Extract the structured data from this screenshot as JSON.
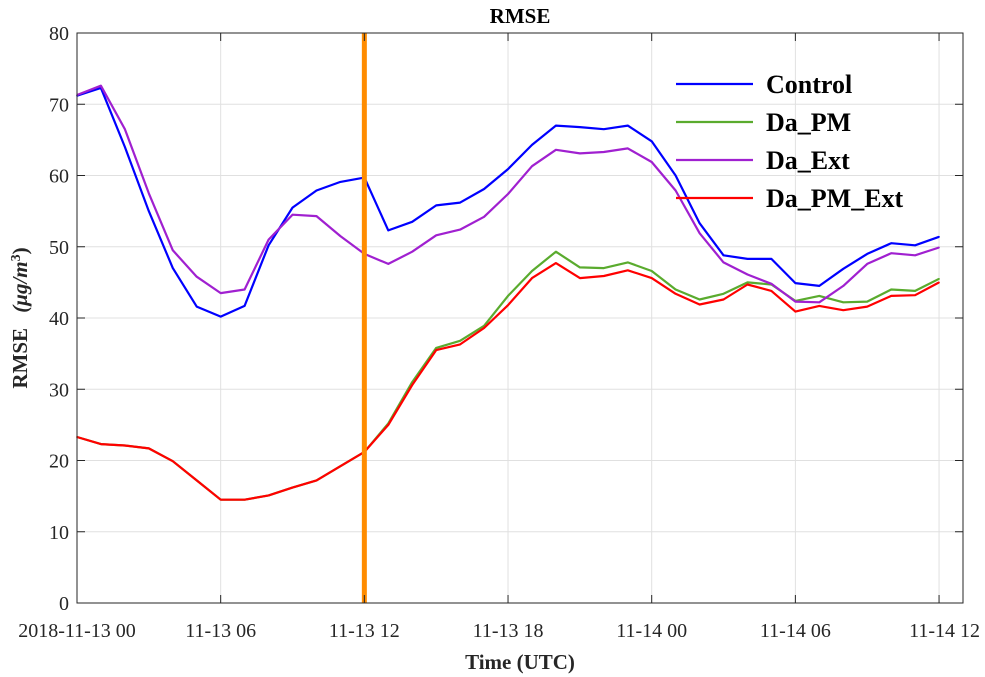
{
  "chart_data": {
    "type": "line",
    "title": "RMSE",
    "xlabel": "Time (UTC)",
    "ylabel": "RMSE",
    "ylabel_unit": "(μg/m3)",
    "ylim": [
      0,
      80
    ],
    "xlim": [
      0,
      37
    ],
    "yticks": [
      0,
      10,
      20,
      30,
      40,
      50,
      60,
      70,
      80
    ],
    "xticks": [
      {
        "x": 0,
        "label": "2018-11-13 00"
      },
      {
        "x": 6,
        "label": "11-13 06"
      },
      {
        "x": 12,
        "label": "11-13 12"
      },
      {
        "x": 18,
        "label": "11-13 18"
      },
      {
        "x": 24,
        "label": "11-14 00"
      },
      {
        "x": 30,
        "label": "11-14 06"
      },
      {
        "x": 36,
        "label": "11-14 12"
      }
    ],
    "x": [
      0,
      1,
      2,
      3,
      4,
      5,
      6,
      7,
      8,
      9,
      10,
      11,
      12,
      13,
      14,
      15,
      16,
      17,
      18,
      19,
      20,
      21,
      22,
      23,
      24,
      25,
      26,
      27,
      28,
      29,
      30,
      31,
      32,
      33,
      34,
      35,
      36
    ],
    "series": [
      {
        "name": "Control",
        "color": "#0000ff",
        "values": [
          71.2,
          72.3,
          64.0,
          55.0,
          47.0,
          41.6,
          40.2,
          41.7,
          50.2,
          55.5,
          57.9,
          59.1,
          59.7,
          52.3,
          53.5,
          55.8,
          56.2,
          58.1,
          60.9,
          64.3,
          67.0,
          66.8,
          66.5,
          67.0,
          64.8,
          60.0,
          53.3,
          48.8,
          48.3,
          48.3,
          44.9,
          44.5,
          46.9,
          49.0,
          50.5,
          50.2,
          51.4
        ]
      },
      {
        "name": "Da_PM",
        "color": "#5aab2e",
        "values": [
          23.3,
          22.3,
          22.1,
          21.7,
          19.9,
          17.2,
          14.5,
          14.5,
          15.1,
          16.2,
          17.2,
          19.2,
          21.2,
          25.2,
          31.0,
          35.8,
          36.8,
          38.9,
          43.1,
          46.6,
          49.3,
          47.1,
          47.0,
          47.8,
          46.6,
          44.0,
          42.6,
          43.4,
          45.0,
          44.7,
          42.4,
          43.1,
          42.2,
          42.3,
          44.0,
          43.8,
          45.5
        ]
      },
      {
        "name": "Da_Ext",
        "color": "#a020d0",
        "values": [
          71.3,
          72.6,
          66.5,
          57.5,
          49.5,
          45.8,
          43.5,
          44.0,
          51.0,
          54.5,
          54.3,
          51.5,
          49.0,
          47.6,
          49.3,
          51.6,
          52.4,
          54.2,
          57.4,
          61.3,
          63.6,
          63.1,
          63.3,
          63.8,
          61.9,
          57.9,
          51.9,
          47.8,
          46.1,
          44.8,
          42.3,
          42.2,
          44.5,
          47.6,
          49.1,
          48.8,
          49.9
        ]
      },
      {
        "name": "Da_PM_Ext",
        "color": "#ff0000",
        "values": [
          23.3,
          22.3,
          22.1,
          21.7,
          19.9,
          17.2,
          14.5,
          14.5,
          15.1,
          16.2,
          17.2,
          19.2,
          21.2,
          25.0,
          30.6,
          35.5,
          36.3,
          38.6,
          41.8,
          45.6,
          47.7,
          45.6,
          45.9,
          46.7,
          45.6,
          43.4,
          41.9,
          42.6,
          44.7,
          43.8,
          40.9,
          41.7,
          41.1,
          41.6,
          43.1,
          43.2,
          45.0
        ]
      }
    ],
    "vline": {
      "x": 12,
      "color": "#ff8c00"
    },
    "grid": true,
    "legend_position": "top-right"
  }
}
